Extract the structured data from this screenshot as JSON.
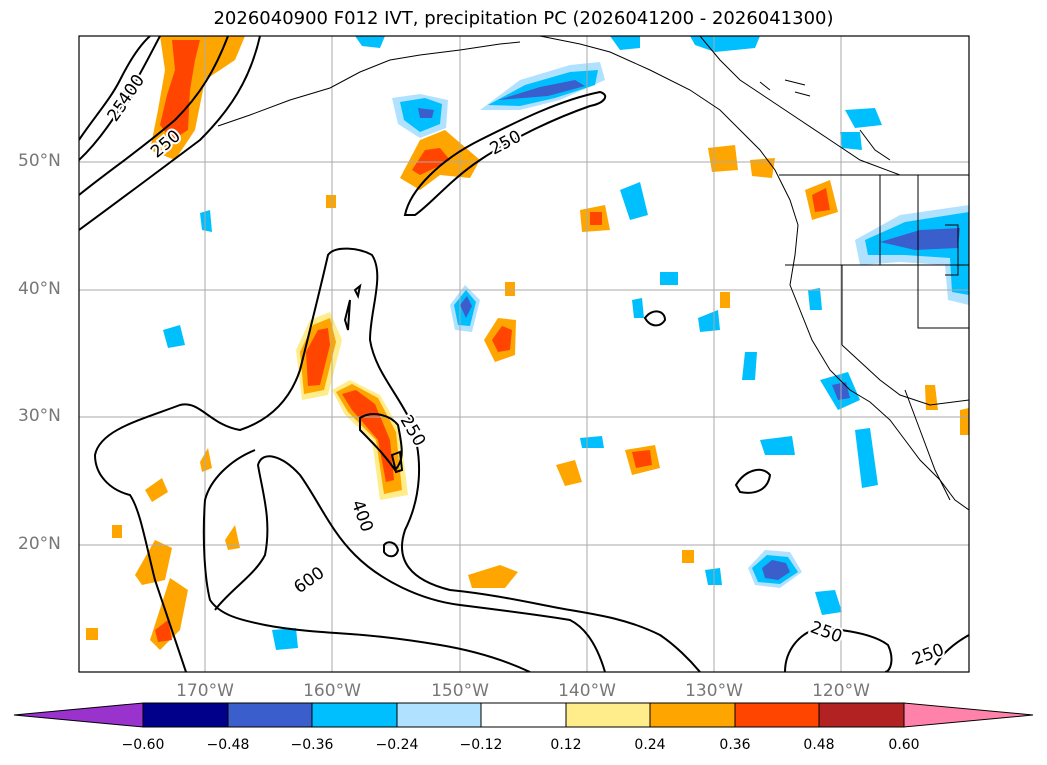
{
  "title": "2026040900 F012 IVT, precipitation PC (2026041200 - 2026041300)",
  "lat_labels": [
    "50°N",
    "40°N",
    "30°N",
    "20°N"
  ],
  "lon_labels": [
    "170°W",
    "160°W",
    "150°W",
    "140°W",
    "130°W",
    "120°W"
  ],
  "contour_labels": [
    "250",
    "400",
    "250",
    "250",
    "250",
    "400",
    "600",
    "250",
    "250"
  ],
  "colorbar": {
    "ticks": [
      "−0.60",
      "−0.48",
      "−0.36",
      "−0.24",
      "−0.12",
      "0.12",
      "0.24",
      "0.36",
      "0.48",
      "0.60"
    ],
    "colors": [
      "#9a32cd",
      "#00008b",
      "#3a5fcd",
      "#00bfff",
      "#b0e2ff",
      "#ffffff",
      "#ffec8b",
      "#ffa500",
      "#ff4500",
      "#b22222",
      "#ff82ab"
    ]
  }
}
